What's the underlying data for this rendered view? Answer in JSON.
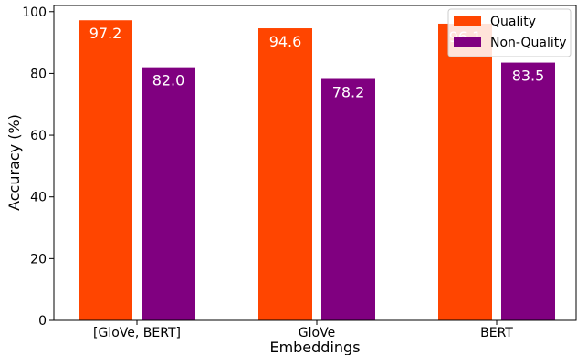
{
  "chart_data": {
    "type": "bar",
    "categories": [
      "[GloVe, BERT]",
      "GloVe",
      "BERT"
    ],
    "series": [
      {
        "name": "Quality",
        "values": [
          97.2,
          94.6,
          96.1
        ],
        "color": "#ff4500"
      },
      {
        "name": "Non-Quality",
        "values": [
          82.0,
          78.2,
          83.5
        ],
        "color": "#800080"
      }
    ],
    "data_labels": [
      [
        "97.2",
        "94.6",
        "96.1"
      ],
      [
        "82.0",
        "78.2",
        "83.5"
      ]
    ],
    "xlabel": "Embeddings",
    "ylabel": "Accuracy (%)",
    "ylim": [
      0,
      102
    ],
    "yticks": [
      0,
      20,
      40,
      60,
      80,
      100
    ],
    "grid": false,
    "legend_position": "top-right"
  }
}
